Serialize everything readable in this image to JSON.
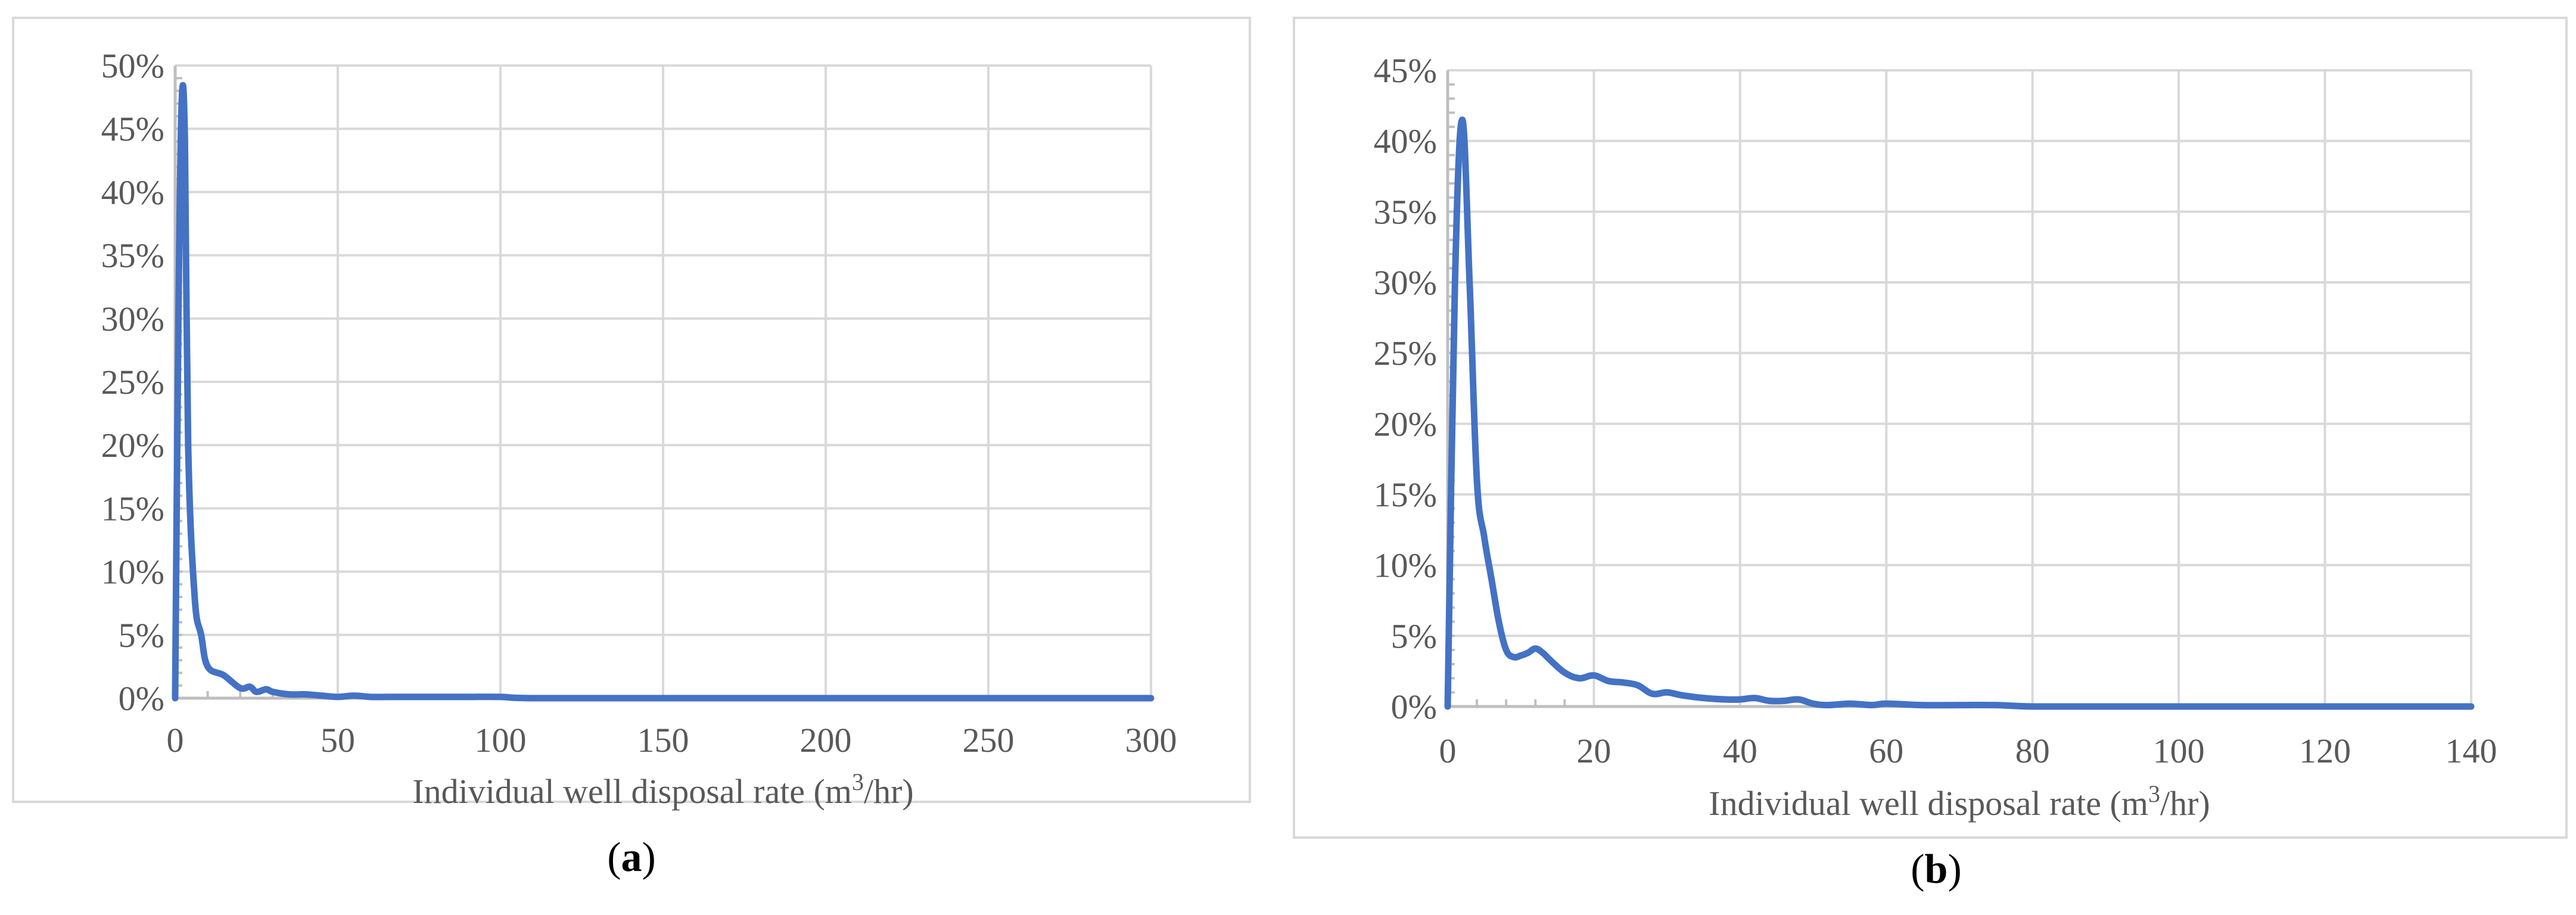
{
  "chart_data": [
    {
      "type": "line",
      "panel_label": "a",
      "title": "",
      "xlabel": "Individual well disposal rate (m³/hr)",
      "ylabel": "",
      "xlim": [
        0,
        300
      ],
      "ylim": [
        0,
        0.5
      ],
      "x_ticks": [
        "0",
        "50",
        "100",
        "150",
        "200",
        "250",
        "300"
      ],
      "y_ticks": [
        "0%",
        "5%",
        "10%",
        "15%",
        "20%",
        "25%",
        "30%",
        "35%",
        "40%",
        "45%",
        "50%"
      ],
      "grid": true,
      "line_color": "#4472c4",
      "series": [
        {
          "x": [
            0,
            1,
            2,
            3,
            4,
            6,
            8,
            10,
            15,
            20,
            23,
            25,
            28,
            30,
            35,
            40,
            45,
            50,
            55,
            60,
            65,
            70,
            80,
            90,
            100,
            110,
            150,
            200,
            250,
            300
          ],
          "values": [
            0.0,
            0.3,
            0.47,
            0.44,
            0.2,
            0.08,
            0.05,
            0.025,
            0.018,
            0.008,
            0.009,
            0.005,
            0.007,
            0.005,
            0.003,
            0.003,
            0.002,
            0.001,
            0.002,
            0.001,
            0.001,
            0.001,
            0.001,
            0.001,
            0.001,
            0.0,
            0.0,
            0.0,
            0.0,
            0.0
          ]
        }
      ]
    },
    {
      "type": "line",
      "panel_label": "b",
      "title": "",
      "xlabel": "Individual well disposal rate (m³/hr)",
      "ylabel": "",
      "xlim": [
        0,
        140
      ],
      "ylim": [
        0,
        0.45
      ],
      "x_ticks": [
        "0",
        "20",
        "40",
        "60",
        "80",
        "100",
        "120",
        "140"
      ],
      "y_ticks": [
        "0%",
        "5%",
        "10%",
        "15%",
        "20%",
        "25%",
        "30%",
        "35%",
        "40%",
        "45%"
      ],
      "grid": true,
      "line_color": "#4472c4",
      "series": [
        {
          "x": [
            0,
            1,
            2,
            3,
            4,
            5,
            6,
            7,
            8,
            9,
            10,
            11,
            12,
            13,
            14,
            16,
            18,
            20,
            22,
            24,
            26,
            28,
            30,
            32,
            35,
            38,
            40,
            42,
            44,
            46,
            48,
            50,
            52,
            55,
            58,
            60,
            65,
            70,
            75,
            80,
            90,
            100,
            110,
            120,
            130,
            140
          ],
          "values": [
            0.0,
            0.3,
            0.415,
            0.3,
            0.16,
            0.12,
            0.09,
            0.06,
            0.04,
            0.035,
            0.036,
            0.038,
            0.041,
            0.038,
            0.033,
            0.024,
            0.02,
            0.022,
            0.018,
            0.017,
            0.015,
            0.009,
            0.01,
            0.008,
            0.006,
            0.005,
            0.005,
            0.006,
            0.004,
            0.004,
            0.005,
            0.002,
            0.001,
            0.002,
            0.001,
            0.002,
            0.001,
            0.001,
            0.001,
            0.0,
            0.0,
            0.0,
            0.0,
            0.0,
            0.0,
            0.0
          ]
        }
      ]
    }
  ]
}
